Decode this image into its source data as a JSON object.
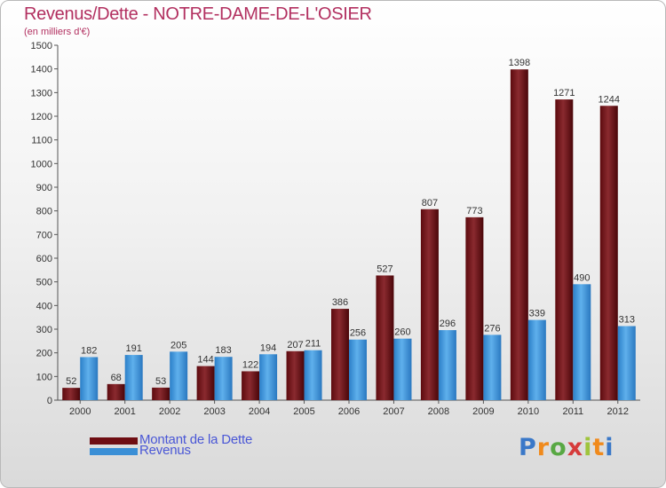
{
  "header": {
    "title": "Revenus/Dette - NOTRE-DAME-DE-L'OSIER",
    "subtitle": "(en milliers d'€)"
  },
  "legend": [
    {
      "label": "Montant de la Dette",
      "color": "#6f0e13"
    },
    {
      "label": "Revenus",
      "color": "#3a8fd6"
    }
  ],
  "brand": {
    "text": "Proxiti",
    "letters": [
      {
        "ch": "P",
        "color": "#3a78c8"
      },
      {
        "ch": "r",
        "color": "#f08a1c"
      },
      {
        "ch": "o",
        "color": "#58a843"
      },
      {
        "ch": "x",
        "color": "#d63b3b"
      },
      {
        "ch": "i",
        "color": "#9fc43c"
      },
      {
        "ch": "t",
        "color": "#f08a1c"
      },
      {
        "ch": "i",
        "color": "#3a78c8"
      }
    ]
  },
  "chart_data": {
    "type": "bar",
    "title": "Revenus/Dette - NOTRE-DAME-DE-L'OSIER",
    "subtitle": "(en milliers d'€)",
    "categories": [
      "2000",
      "2001",
      "2002",
      "2003",
      "2004",
      "2005",
      "2006",
      "2007",
      "2008",
      "2009",
      "2010",
      "2011",
      "2012"
    ],
    "series": [
      {
        "name": "Montant de la Dette",
        "color": "#6f0e13",
        "values": [
          52,
          68,
          53,
          144,
          122,
          207,
          386,
          527,
          807,
          773,
          1398,
          1271,
          1244
        ]
      },
      {
        "name": "Revenus",
        "color": "#3a8fd6",
        "values": [
          182,
          191,
          205,
          183,
          194,
          211,
          256,
          260,
          296,
          276,
          339,
          490,
          313
        ]
      }
    ],
    "ylim": [
      0,
      1500
    ],
    "yticks": [
      0,
      100,
      200,
      300,
      400,
      500,
      600,
      700,
      800,
      900,
      1000,
      1100,
      1200,
      1300,
      1400,
      1500
    ],
    "grid": false,
    "legend_position": "bottom-left"
  }
}
